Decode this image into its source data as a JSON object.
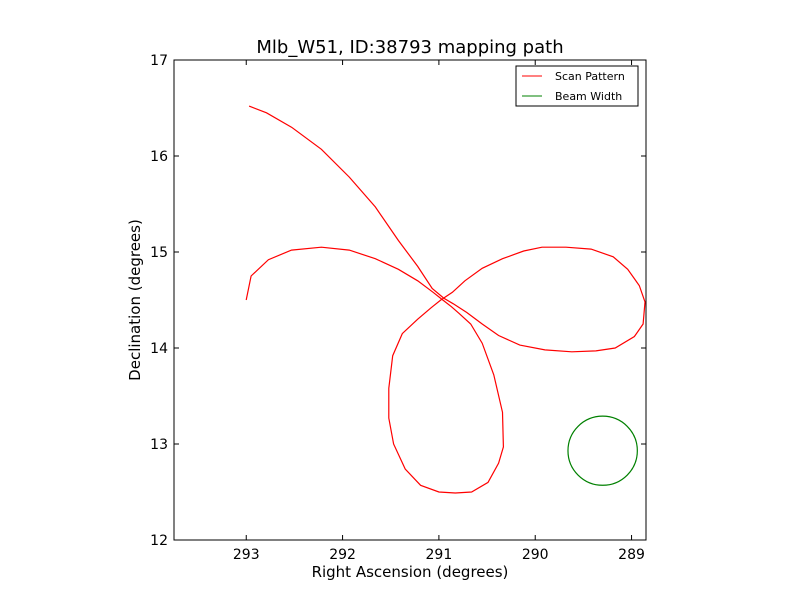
{
  "chart_data": {
    "type": "line",
    "title": "Mlb_W51, ID:38793 mapping path",
    "xlabel": "Right Ascension (degrees)",
    "ylabel": "Declination (degrees)",
    "xlim": [
      293.75,
      288.85
    ],
    "ylim": [
      12,
      17
    ],
    "x_reversed": true,
    "xticks": [
      293,
      292,
      291,
      290,
      289
    ],
    "yticks": [
      12,
      13,
      14,
      15,
      16,
      17
    ],
    "grid": false,
    "legend": "top-right",
    "series": [
      {
        "name": "Scan Pattern",
        "color": "#ff0000",
        "x": [
          293.0,
          292.95,
          292.77,
          292.53,
          292.22,
          291.93,
          291.66,
          291.42,
          291.22,
          291.06,
          290.96,
          290.87,
          290.79,
          290.67,
          290.55,
          290.43,
          290.34,
          290.33,
          290.38,
          290.49,
          290.66,
          290.83,
          291.0,
          291.19,
          291.35,
          291.47,
          291.52,
          291.52,
          291.48,
          291.38,
          291.22,
          291.08,
          290.98,
          290.86,
          290.73,
          290.55,
          290.34,
          290.12,
          289.93,
          289.68,
          289.42,
          289.19,
          289.04,
          288.92,
          288.86,
          288.88,
          288.97,
          289.17,
          289.37,
          289.62,
          289.9,
          290.16,
          290.38,
          290.55,
          290.71,
          290.85,
          290.95,
          291.07,
          291.22,
          291.42,
          291.66,
          291.93,
          292.22,
          292.53,
          292.79,
          292.97
        ],
        "y": [
          14.5,
          14.75,
          14.92,
          15.02,
          15.05,
          15.02,
          14.93,
          14.82,
          14.7,
          14.58,
          14.5,
          14.43,
          14.36,
          14.25,
          14.05,
          13.72,
          13.33,
          12.97,
          12.8,
          12.6,
          12.5,
          12.49,
          12.5,
          12.57,
          12.74,
          13.0,
          13.27,
          13.58,
          13.92,
          14.15,
          14.3,
          14.42,
          14.5,
          14.58,
          14.7,
          14.83,
          14.93,
          15.01,
          15.05,
          15.05,
          15.03,
          14.95,
          14.82,
          14.65,
          14.48,
          14.25,
          14.12,
          14.0,
          13.97,
          13.96,
          13.98,
          14.03,
          14.13,
          14.25,
          14.37,
          14.46,
          14.52,
          14.62,
          14.85,
          15.12,
          15.47,
          15.78,
          16.07,
          16.3,
          16.45,
          16.52
        ]
      },
      {
        "name": "Beam Width",
        "color": "#008000",
        "circle": {
          "center_x": 289.3,
          "center_y": 12.93,
          "radius_deg": 0.36
        }
      }
    ]
  }
}
